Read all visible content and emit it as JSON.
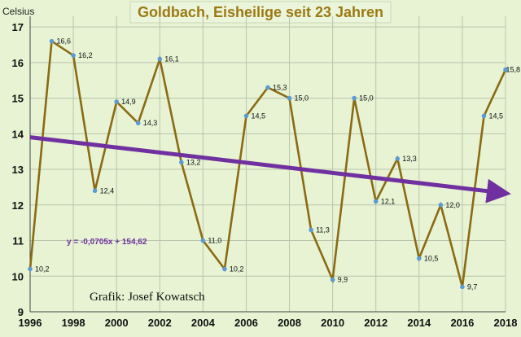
{
  "chart_data": {
    "type": "line",
    "title": "Goldbach, Eisheilige seit 23 Jahren",
    "ylabel": "Celsius",
    "xlabel": "",
    "x": [
      1996,
      1997,
      1998,
      1999,
      2000,
      2001,
      2002,
      2003,
      2004,
      2005,
      2006,
      2007,
      2008,
      2009,
      2010,
      2011,
      2012,
      2013,
      2014,
      2015,
      2016,
      2017,
      2018
    ],
    "values": [
      10.2,
      16.6,
      16.2,
      12.4,
      14.9,
      14.3,
      16.1,
      13.2,
      11.0,
      10.2,
      14.5,
      15.3,
      15.0,
      11.3,
      9.9,
      15.0,
      12.1,
      13.3,
      10.5,
      12.0,
      9.7,
      14.5,
      15.8
    ],
    "data_labels": [
      "10,2",
      "16,6",
      "16,2",
      "12,4",
      "14,9",
      "14,3",
      "16,1",
      "13,2",
      "11,0",
      "10,2",
      "14,5",
      "15,3",
      "15,0",
      "11,3",
      "9,9",
      "15,0",
      "12,1",
      "13,3",
      "10,5",
      "12,0",
      "9,7",
      "14,5",
      "15,8"
    ],
    "xticks": [
      1996,
      1998,
      2000,
      2002,
      2004,
      2006,
      2008,
      2010,
      2012,
      2014,
      2016,
      2018
    ],
    "xtick_labels": [
      "1996",
      "1998",
      "2000",
      "2002",
      "2004",
      "2006",
      "2008",
      "2010",
      "2012",
      "2014",
      "2016",
      "2018"
    ],
    "yticks": [
      9,
      10,
      11,
      12,
      13,
      14,
      15,
      16,
      17
    ],
    "ytick_labels": [
      "9",
      "10",
      "11",
      "12",
      "13",
      "14",
      "15",
      "16",
      "17"
    ],
    "xlim": [
      1996,
      2018
    ],
    "ylim": [
      9,
      17.3
    ],
    "grid": true,
    "trendline": {
      "slope": -0.0705,
      "intercept": 154.62,
      "equation": "y = -0,0705x + 154,62"
    },
    "annotation": "Grafik: Josef Kowatsch",
    "colors": {
      "background": "#e7f3d3",
      "line": "#8b6a14",
      "marker": "#5b9bd5",
      "trend": "#7030a0",
      "title": "#9c7a12",
      "grid": "#b9c4ad"
    }
  }
}
